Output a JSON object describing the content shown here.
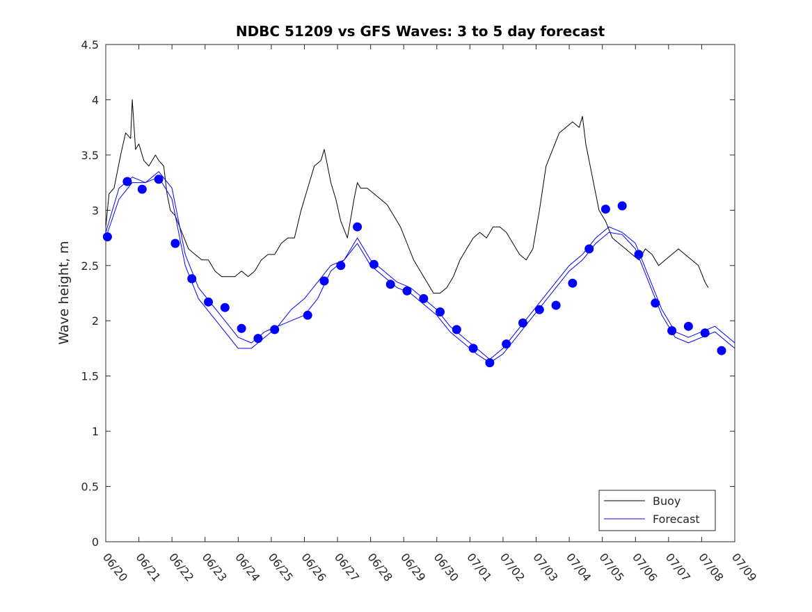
{
  "chart_data": {
    "type": "line",
    "title": "NDBC 51209 vs GFS Waves: 3 to 5 day forecast",
    "xlabel": "",
    "ylabel": "Wave height, m",
    "xlim": [
      "06/20",
      "07/09"
    ],
    "ylim": [
      0,
      4.5
    ],
    "x_ticks": [
      "06/20",
      "06/21",
      "06/22",
      "06/23",
      "06/24",
      "06/25",
      "06/26",
      "06/27",
      "06/28",
      "06/29",
      "06/30",
      "07/01",
      "07/02",
      "07/03",
      "07/04",
      "07/05",
      "07/06",
      "07/07",
      "07/08",
      "07/09"
    ],
    "y_ticks": [
      "0",
      "0.5",
      "1",
      "1.5",
      "2",
      "2.5",
      "3",
      "3.5",
      "4",
      "4.5"
    ],
    "legend": {
      "position": "bottom-right",
      "entries": [
        "Buoy",
        "Forecast"
      ]
    },
    "colors": {
      "buoy": "#000000",
      "forecast": "#0000ff",
      "axis": "#262626"
    },
    "grid": false,
    "series": [
      {
        "name": "Buoy",
        "kind": "line",
        "x": [
          0.0,
          0.1,
          0.25,
          0.45,
          0.6,
          0.75,
          0.8,
          0.9,
          1.0,
          1.15,
          1.3,
          1.5,
          1.6,
          1.75,
          1.85,
          1.95,
          2.1,
          2.3,
          2.5,
          2.7,
          2.9,
          3.1,
          3.3,
          3.5,
          3.7,
          3.9,
          4.1,
          4.3,
          4.5,
          4.7,
          4.9,
          5.1,
          5.3,
          5.5,
          5.7,
          5.9,
          6.1,
          6.3,
          6.5,
          6.6,
          6.7,
          6.8,
          6.95,
          7.1,
          7.3,
          7.5,
          7.6,
          7.7,
          7.9,
          8.1,
          8.3,
          8.5,
          8.7,
          8.9,
          9.1,
          9.3,
          9.5,
          9.7,
          9.9,
          10.1,
          10.3,
          10.5,
          10.7,
          10.9,
          11.1,
          11.3,
          11.5,
          11.7,
          11.9,
          12.1,
          12.3,
          12.5,
          12.7,
          12.9,
          13.1,
          13.3,
          13.5,
          13.7,
          13.9,
          14.1,
          14.3,
          14.4,
          14.5,
          14.7,
          14.9,
          15.1,
          15.3,
          15.5,
          15.7,
          15.9,
          16.1,
          16.3,
          16.5,
          16.7,
          16.9,
          17.1,
          17.3,
          17.5,
          17.7,
          17.9,
          18.1,
          18.2
        ],
        "y": [
          2.85,
          3.15,
          3.2,
          3.5,
          3.7,
          3.65,
          4.0,
          3.55,
          3.6,
          3.45,
          3.4,
          3.5,
          3.45,
          3.4,
          3.15,
          3.0,
          2.95,
          2.8,
          2.65,
          2.6,
          2.55,
          2.55,
          2.45,
          2.4,
          2.4,
          2.4,
          2.45,
          2.4,
          2.45,
          2.55,
          2.6,
          2.6,
          2.7,
          2.75,
          2.75,
          3.0,
          3.2,
          3.4,
          3.45,
          3.55,
          3.4,
          3.25,
          3.1,
          2.9,
          2.75,
          3.1,
          3.25,
          3.2,
          3.2,
          3.15,
          3.1,
          3.05,
          2.95,
          2.85,
          2.7,
          2.55,
          2.45,
          2.35,
          2.25,
          2.25,
          2.3,
          2.4,
          2.55,
          2.65,
          2.75,
          2.8,
          2.75,
          2.85,
          2.85,
          2.8,
          2.7,
          2.6,
          2.55,
          2.65,
          3.0,
          3.4,
          3.55,
          3.7,
          3.75,
          3.8,
          3.75,
          3.85,
          3.6,
          3.3,
          3.0,
          2.9,
          2.75,
          2.7,
          2.65,
          2.6,
          2.55,
          2.65,
          2.6,
          2.5,
          2.55,
          2.6,
          2.65,
          2.6,
          2.55,
          2.5,
          2.35,
          2.3
        ]
      },
      {
        "name": "Forecast",
        "kind": "markers",
        "x": [
          0.05,
          0.65,
          1.1,
          1.6,
          2.1,
          2.6,
          3.1,
          3.6,
          4.1,
          4.6,
          5.1,
          6.1,
          6.6,
          7.1,
          7.6,
          8.1,
          8.6,
          9.1,
          9.6,
          10.1,
          10.6,
          11.1,
          11.6,
          12.1,
          12.6,
          13.1,
          13.6,
          14.1,
          14.6,
          15.1,
          15.6,
          16.1,
          16.6,
          17.1,
          17.6,
          18.1,
          18.6
        ],
        "y": [
          2.76,
          3.26,
          3.19,
          3.28,
          2.7,
          2.38,
          2.17,
          2.12,
          1.93,
          1.84,
          1.92,
          2.05,
          2.36,
          2.5,
          2.85,
          2.51,
          2.33,
          2.27,
          2.2,
          2.08,
          1.92,
          1.75,
          1.62,
          1.79,
          1.98,
          2.1,
          2.14,
          2.34,
          2.65,
          3.01,
          3.04,
          2.6,
          2.16,
          1.91,
          1.95,
          1.89,
          1.73
        ]
      },
      {
        "name": "",
        "kind": "line",
        "x": [
          0.0,
          0.4,
          0.8,
          1.2,
          1.6,
          2.0,
          2.4,
          2.8,
          3.2,
          3.6,
          4.0,
          4.4,
          4.8,
          5.2,
          5.6,
          6.0,
          6.4,
          6.8,
          7.2,
          7.6,
          8.0,
          8.4,
          8.8,
          9.2,
          9.6,
          10.0,
          10.4,
          10.8,
          11.2,
          11.6,
          12.0,
          12.4,
          12.8,
          13.2,
          13.6,
          14.0,
          14.4,
          14.8,
          15.2,
          15.6,
          16.0,
          16.4,
          16.8,
          17.2,
          17.6,
          18.0,
          18.4,
          18.8,
          19.0
        ],
        "y": [
          2.75,
          3.1,
          3.25,
          3.25,
          3.35,
          3.2,
          2.6,
          2.3,
          2.15,
          2.0,
          1.85,
          1.8,
          1.9,
          1.95,
          2.0,
          2.05,
          2.2,
          2.45,
          2.55,
          2.75,
          2.55,
          2.45,
          2.35,
          2.3,
          2.2,
          2.1,
          1.95,
          1.85,
          1.75,
          1.65,
          1.75,
          1.9,
          2.05,
          2.2,
          2.35,
          2.5,
          2.6,
          2.75,
          2.85,
          2.8,
          2.7,
          2.4,
          2.1,
          1.9,
          1.85,
          1.9,
          1.95,
          1.85,
          1.8
        ]
      },
      {
        "name": "",
        "kind": "line",
        "x": [
          0.0,
          0.4,
          0.8,
          1.2,
          1.6,
          2.0,
          2.4,
          2.8,
          3.2,
          3.6,
          4.0,
          4.4,
          4.8,
          5.2,
          5.6,
          6.0,
          6.4,
          6.8,
          7.2,
          7.6,
          8.0,
          8.4,
          8.8,
          9.2,
          9.6,
          10.0,
          10.4,
          10.8,
          11.2,
          11.6,
          12.0,
          12.4,
          12.8,
          13.2,
          13.6,
          14.0,
          14.4,
          14.8,
          15.2,
          15.6,
          16.0,
          16.4,
          16.8,
          17.2,
          17.6,
          18.0,
          18.4,
          18.8,
          19.0
        ],
        "y": [
          2.8,
          3.2,
          3.3,
          3.25,
          3.3,
          3.1,
          2.5,
          2.2,
          2.05,
          1.9,
          1.75,
          1.75,
          1.85,
          1.95,
          2.1,
          2.2,
          2.35,
          2.5,
          2.55,
          2.7,
          2.5,
          2.4,
          2.3,
          2.25,
          2.15,
          2.05,
          1.9,
          1.8,
          1.7,
          1.62,
          1.7,
          1.85,
          2.0,
          2.15,
          2.3,
          2.45,
          2.55,
          2.7,
          2.8,
          2.78,
          2.65,
          2.35,
          2.05,
          1.85,
          1.8,
          1.85,
          1.9,
          1.8,
          1.75
        ]
      }
    ]
  }
}
